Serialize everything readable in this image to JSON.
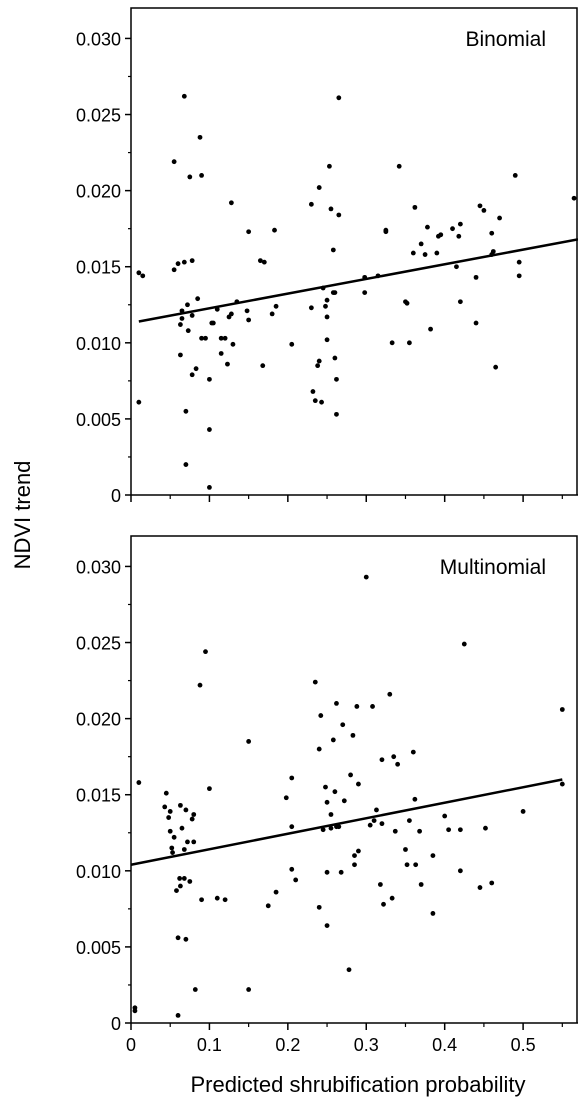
{
  "figure": {
    "ylabel": "NDVI trend",
    "xlabel": "Predicted shrubification probability"
  },
  "chart_data": [
    {
      "type": "scatter",
      "title": "Binomial",
      "xlabel": "Predicted shrubification probability",
      "ylabel": "NDVI trend",
      "xlim": [
        0,
        0.57
      ],
      "ylim": [
        0,
        0.032
      ],
      "xticks": [
        0,
        0.1,
        0.2,
        0.3,
        0.4,
        0.5
      ],
      "xtick_labels": [],
      "yticks": [
        0,
        0.005,
        0.01,
        0.015,
        0.02,
        0.025,
        0.03
      ],
      "ytick_labels": [
        "0",
        "0.005",
        "0.010",
        "0.015",
        "0.020",
        "0.025",
        "0.030"
      ],
      "grid": false,
      "fit_line": {
        "x": [
          0.01,
          0.57
        ],
        "y": [
          0.0114,
          0.0168
        ]
      },
      "points": [
        [
          0.01,
          0.0061
        ],
        [
          0.01,
          0.0146
        ],
        [
          0.015,
          0.0144
        ],
        [
          0.055,
          0.0219
        ],
        [
          0.055,
          0.0148
        ],
        [
          0.06,
          0.0152
        ],
        [
          0.063,
          0.0092
        ],
        [
          0.063,
          0.0112
        ],
        [
          0.065,
          0.0116
        ],
        [
          0.065,
          0.0121
        ],
        [
          0.068,
          0.0262
        ],
        [
          0.068,
          0.0153
        ],
        [
          0.07,
          0.0055
        ],
        [
          0.07,
          0.002
        ],
        [
          0.072,
          0.0125
        ],
        [
          0.073,
          0.0108
        ],
        [
          0.075,
          0.0209
        ],
        [
          0.078,
          0.0154
        ],
        [
          0.078,
          0.0118
        ],
        [
          0.078,
          0.0079
        ],
        [
          0.083,
          0.0083
        ],
        [
          0.085,
          0.0129
        ],
        [
          0.088,
          0.0235
        ],
        [
          0.09,
          0.021
        ],
        [
          0.09,
          0.0103
        ],
        [
          0.095,
          0.0103
        ],
        [
          0.1,
          0.0043
        ],
        [
          0.1,
          0.0005
        ],
        [
          0.1,
          0.0076
        ],
        [
          0.103,
          0.0113
        ],
        [
          0.105,
          0.0113
        ],
        [
          0.11,
          0.0122
        ],
        [
          0.115,
          0.0093
        ],
        [
          0.115,
          0.0103
        ],
        [
          0.12,
          0.0103
        ],
        [
          0.123,
          0.0086
        ],
        [
          0.125,
          0.0117
        ],
        [
          0.128,
          0.0192
        ],
        [
          0.128,
          0.0119
        ],
        [
          0.13,
          0.0099
        ],
        [
          0.135,
          0.0127
        ],
        [
          0.148,
          0.0121
        ],
        [
          0.15,
          0.0173
        ],
        [
          0.15,
          0.0115
        ],
        [
          0.165,
          0.0154
        ],
        [
          0.168,
          0.0085
        ],
        [
          0.17,
          0.0153
        ],
        [
          0.18,
          0.0119
        ],
        [
          0.183,
          0.0174
        ],
        [
          0.185,
          0.0124
        ],
        [
          0.205,
          0.0099
        ],
        [
          0.23,
          0.0123
        ],
        [
          0.23,
          0.0191
        ],
        [
          0.232,
          0.0068
        ],
        [
          0.235,
          0.0062
        ],
        [
          0.238,
          0.0085
        ],
        [
          0.24,
          0.0202
        ],
        [
          0.24,
          0.0088
        ],
        [
          0.243,
          0.0061
        ],
        [
          0.245,
          0.0136
        ],
        [
          0.248,
          0.0124
        ],
        [
          0.25,
          0.0128
        ],
        [
          0.25,
          0.0117
        ],
        [
          0.25,
          0.0102
        ],
        [
          0.253,
          0.0216
        ],
        [
          0.255,
          0.0188
        ],
        [
          0.258,
          0.0161
        ],
        [
          0.258,
          0.0133
        ],
        [
          0.26,
          0.0133
        ],
        [
          0.26,
          0.009
        ],
        [
          0.262,
          0.0076
        ],
        [
          0.262,
          0.0053
        ],
        [
          0.265,
          0.0184
        ],
        [
          0.265,
          0.0261
        ],
        [
          0.298,
          0.0133
        ],
        [
          0.298,
          0.0143
        ],
        [
          0.315,
          0.0144
        ],
        [
          0.325,
          0.0174
        ],
        [
          0.325,
          0.0173
        ],
        [
          0.333,
          0.01
        ],
        [
          0.342,
          0.0216
        ],
        [
          0.35,
          0.0127
        ],
        [
          0.352,
          0.0126
        ],
        [
          0.355,
          0.01
        ],
        [
          0.36,
          0.0159
        ],
        [
          0.362,
          0.0189
        ],
        [
          0.37,
          0.0165
        ],
        [
          0.375,
          0.0158
        ],
        [
          0.378,
          0.0176
        ],
        [
          0.382,
          0.0109
        ],
        [
          0.39,
          0.0159
        ],
        [
          0.392,
          0.017
        ],
        [
          0.395,
          0.0171
        ],
        [
          0.41,
          0.0175
        ],
        [
          0.415,
          0.015
        ],
        [
          0.418,
          0.017
        ],
        [
          0.42,
          0.0178
        ],
        [
          0.42,
          0.0127
        ],
        [
          0.44,
          0.0143
        ],
        [
          0.44,
          0.0113
        ],
        [
          0.445,
          0.019
        ],
        [
          0.45,
          0.0187
        ],
        [
          0.46,
          0.0172
        ],
        [
          0.46,
          0.0158
        ],
        [
          0.462,
          0.016
        ],
        [
          0.465,
          0.0084
        ],
        [
          0.47,
          0.0182
        ],
        [
          0.49,
          0.021
        ],
        [
          0.495,
          0.0153
        ],
        [
          0.495,
          0.0144
        ],
        [
          0.565,
          0.0195
        ]
      ]
    },
    {
      "type": "scatter",
      "title": "Multinomial",
      "xlabel": "Predicted shrubification probability",
      "ylabel": "NDVI trend",
      "xlim": [
        0,
        0.57
      ],
      "ylim": [
        0,
        0.032
      ],
      "xticks": [
        0,
        0.1,
        0.2,
        0.3,
        0.4,
        0.5
      ],
      "xtick_labels": [
        "0",
        "0.1",
        "0.2",
        "0.3",
        "0.4",
        "0.5"
      ],
      "yticks": [
        0,
        0.005,
        0.01,
        0.015,
        0.02,
        0.025,
        0.03
      ],
      "ytick_labels": [
        "0",
        "0.005",
        "0.010",
        "0.015",
        "0.020",
        "0.025",
        "0.030"
      ],
      "grid": false,
      "fit_line": {
        "x": [
          0,
          0.55
        ],
        "y": [
          0.0104,
          0.016
        ]
      },
      "points": [
        [
          0.005,
          0.0008
        ],
        [
          0.005,
          0.001
        ],
        [
          0.01,
          0.0158
        ],
        [
          0.043,
          0.0142
        ],
        [
          0.045,
          0.0151
        ],
        [
          0.048,
          0.0135
        ],
        [
          0.05,
          0.0139
        ],
        [
          0.05,
          0.0126
        ],
        [
          0.052,
          0.0115
        ],
        [
          0.053,
          0.0112
        ],
        [
          0.055,
          0.0122
        ],
        [
          0.058,
          0.0087
        ],
        [
          0.06,
          0.0056
        ],
        [
          0.06,
          0.0005
        ],
        [
          0.062,
          0.0095
        ],
        [
          0.063,
          0.009
        ],
        [
          0.063,
          0.0143
        ],
        [
          0.065,
          0.0128
        ],
        [
          0.068,
          0.0114
        ],
        [
          0.068,
          0.0095
        ],
        [
          0.07,
          0.0055
        ],
        [
          0.07,
          0.014
        ],
        [
          0.072,
          0.0119
        ],
        [
          0.075,
          0.0093
        ],
        [
          0.078,
          0.0134
        ],
        [
          0.08,
          0.0119
        ],
        [
          0.08,
          0.0137
        ],
        [
          0.082,
          0.0022
        ],
        [
          0.088,
          0.0222
        ],
        [
          0.09,
          0.0081
        ],
        [
          0.095,
          0.0244
        ],
        [
          0.1,
          0.0154
        ],
        [
          0.11,
          0.0082
        ],
        [
          0.12,
          0.0081
        ],
        [
          0.15,
          0.0185
        ],
        [
          0.15,
          0.0022
        ],
        [
          0.175,
          0.0077
        ],
        [
          0.185,
          0.0086
        ],
        [
          0.198,
          0.0148
        ],
        [
          0.205,
          0.0161
        ],
        [
          0.205,
          0.0129
        ],
        [
          0.205,
          0.0101
        ],
        [
          0.21,
          0.0094
        ],
        [
          0.235,
          0.0224
        ],
        [
          0.24,
          0.018
        ],
        [
          0.24,
          0.0076
        ],
        [
          0.242,
          0.0202
        ],
        [
          0.245,
          0.0127
        ],
        [
          0.248,
          0.0155
        ],
        [
          0.25,
          0.0145
        ],
        [
          0.25,
          0.0099
        ],
        [
          0.25,
          0.0064
        ],
        [
          0.255,
          0.0137
        ],
        [
          0.255,
          0.0128
        ],
        [
          0.258,
          0.0186
        ],
        [
          0.26,
          0.0152
        ],
        [
          0.262,
          0.021
        ],
        [
          0.262,
          0.0129
        ],
        [
          0.265,
          0.0129
        ],
        [
          0.268,
          0.0099
        ],
        [
          0.27,
          0.0196
        ],
        [
          0.272,
          0.0146
        ],
        [
          0.278,
          0.0035
        ],
        [
          0.28,
          0.0163
        ],
        [
          0.283,
          0.0189
        ],
        [
          0.285,
          0.011
        ],
        [
          0.285,
          0.0104
        ],
        [
          0.288,
          0.0208
        ],
        [
          0.29,
          0.0157
        ],
        [
          0.29,
          0.0113
        ],
        [
          0.3,
          0.0293
        ],
        [
          0.305,
          0.013
        ],
        [
          0.308,
          0.0208
        ],
        [
          0.31,
          0.0133
        ],
        [
          0.313,
          0.014
        ],
        [
          0.318,
          0.0091
        ],
        [
          0.32,
          0.0173
        ],
        [
          0.32,
          0.0131
        ],
        [
          0.322,
          0.0078
        ],
        [
          0.33,
          0.0216
        ],
        [
          0.333,
          0.0082
        ],
        [
          0.335,
          0.0175
        ],
        [
          0.337,
          0.0126
        ],
        [
          0.34,
          0.017
        ],
        [
          0.35,
          0.0114
        ],
        [
          0.352,
          0.0104
        ],
        [
          0.355,
          0.0133
        ],
        [
          0.36,
          0.0178
        ],
        [
          0.362,
          0.0147
        ],
        [
          0.363,
          0.0104
        ],
        [
          0.368,
          0.0126
        ],
        [
          0.37,
          0.0091
        ],
        [
          0.385,
          0.0072
        ],
        [
          0.385,
          0.011
        ],
        [
          0.4,
          0.0136
        ],
        [
          0.405,
          0.0127
        ],
        [
          0.42,
          0.01
        ],
        [
          0.42,
          0.0127
        ],
        [
          0.425,
          0.0249
        ],
        [
          0.445,
          0.0089
        ],
        [
          0.452,
          0.0128
        ],
        [
          0.46,
          0.0092
        ],
        [
          0.5,
          0.0139
        ],
        [
          0.55,
          0.0206
        ],
        [
          0.55,
          0.0157
        ]
      ]
    }
  ]
}
